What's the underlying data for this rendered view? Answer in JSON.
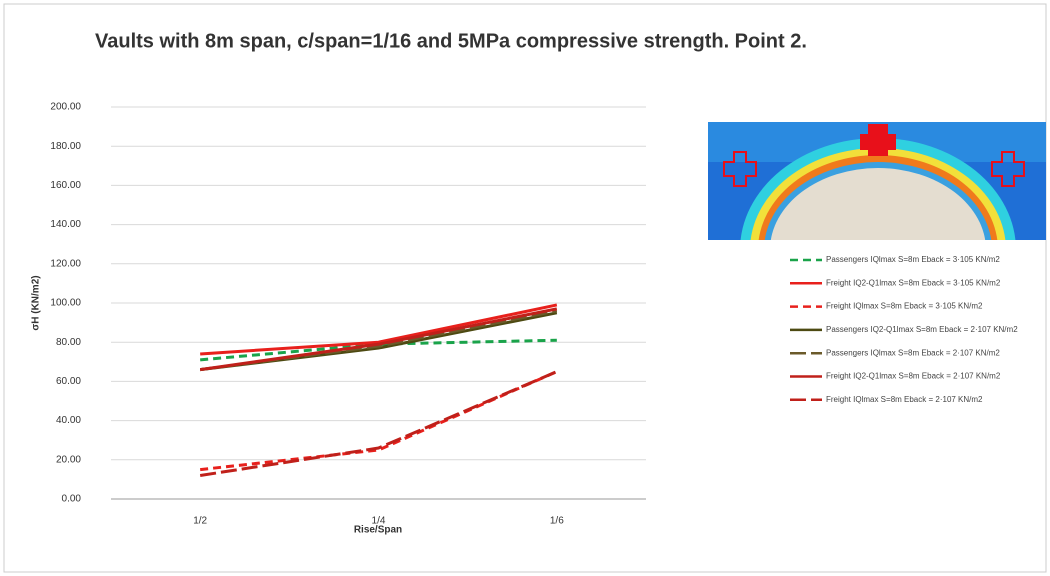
{
  "chart_data": {
    "type": "line",
    "title": "Vaults with 8m span,  c/span=1/16 and 5MPa compressive strength. Point 2.",
    "x_label": "Rise/Span",
    "y_label": "σH (KN/m2)",
    "categories": [
      "1/2",
      "1/4",
      "1/6"
    ],
    "ylim": [
      0,
      200
    ],
    "yticks": [
      {
        "value": 0,
        "label": "0.00"
      },
      {
        "value": 20,
        "label": "20.00"
      },
      {
        "value": 40,
        "label": "40.00"
      },
      {
        "value": 60,
        "label": "60.00"
      },
      {
        "value": 80,
        "label": "80.00"
      },
      {
        "value": 100,
        "label": "100.00"
      },
      {
        "value": 120,
        "label": "120.00"
      },
      {
        "value": 140,
        "label": "140.00"
      },
      {
        "value": 160,
        "label": "160.00"
      },
      {
        "value": 180,
        "label": "180.00"
      },
      {
        "value": 200,
        "label": "200.00"
      }
    ],
    "grid": true,
    "series": [
      {
        "name": "Passengers IQlmax S=8m Eback = 3·105 KN/m2",
        "color": "#1aa34a",
        "dash": "dashed",
        "values": [
          71,
          79,
          81
        ]
      },
      {
        "name": "Freight IQ2-Q1lmax S=8m Eback = 3·105 KN/m2",
        "color": "#e8201c",
        "dash": "solid",
        "values": [
          74,
          80,
          99
        ]
      },
      {
        "name": "Freight IQlmax S=8m Eback = 3·105 KN/m2",
        "color": "#e8201c",
        "dash": "dashed",
        "values": [
          15,
          25,
          65
        ]
      },
      {
        "name": "Passengers IQ2-Q1lmax S=8m Eback = 2·107 KN/m2",
        "color": "#4d4a12",
        "dash": "solid",
        "values": [
          66,
          77,
          95
        ]
      },
      {
        "name": "Passengers IQlmax S=8m Eback = 2·107 KN/m2",
        "color": "#6b5a2a",
        "dash": "longdash",
        "values": [
          66,
          78,
          96
        ]
      },
      {
        "name": "Freight IQ2-Q1lmax S=8m Eback = 2·107 KN/m2",
        "color": "#c0201a",
        "dash": "solid",
        "values": [
          66,
          79,
          97
        ]
      },
      {
        "name": "Freight IQlmax S=8m Eback = 2·107 KN/m2",
        "color": "#c0201a",
        "dash": "longdash",
        "values": [
          12,
          26,
          65
        ]
      }
    ]
  }
}
